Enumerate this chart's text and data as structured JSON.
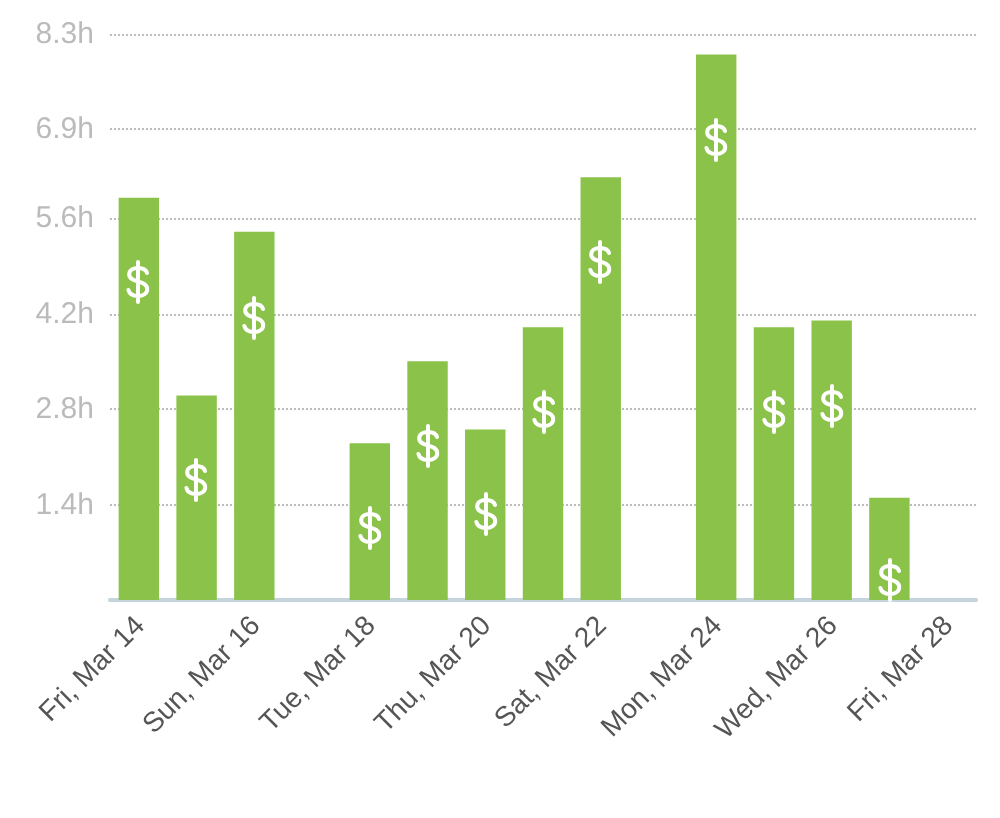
{
  "chart_data": {
    "type": "bar",
    "categories": [
      "Fri, Mar 14",
      null,
      "Sun, Mar 16",
      null,
      "Tue, Mar 18",
      null,
      "Thu, Mar 20",
      null,
      "Sat, Mar 22",
      null,
      "Mon, Mar 24",
      null,
      "Wed, Mar 26",
      null,
      "Fri, Mar 28"
    ],
    "values": [
      5.9,
      3.0,
      5.4,
      0,
      2.3,
      3.5,
      2.5,
      4.0,
      6.2,
      0,
      8.0,
      4.0,
      4.1,
      1.5,
      0
    ],
    "color": "#8bc34a",
    "ylim": [
      0,
      8.3
    ],
    "yticks": [
      {
        "value": 1.4,
        "label": "1.4h"
      },
      {
        "value": 2.8,
        "label": "2.8h"
      },
      {
        "value": 4.2,
        "label": "4.2h"
      },
      {
        "value": 5.6,
        "label": "5.6h"
      },
      {
        "value": 6.9,
        "label": "6.9h"
      },
      {
        "value": 8.3,
        "label": "8.3h"
      }
    ],
    "grid": "y"
  }
}
